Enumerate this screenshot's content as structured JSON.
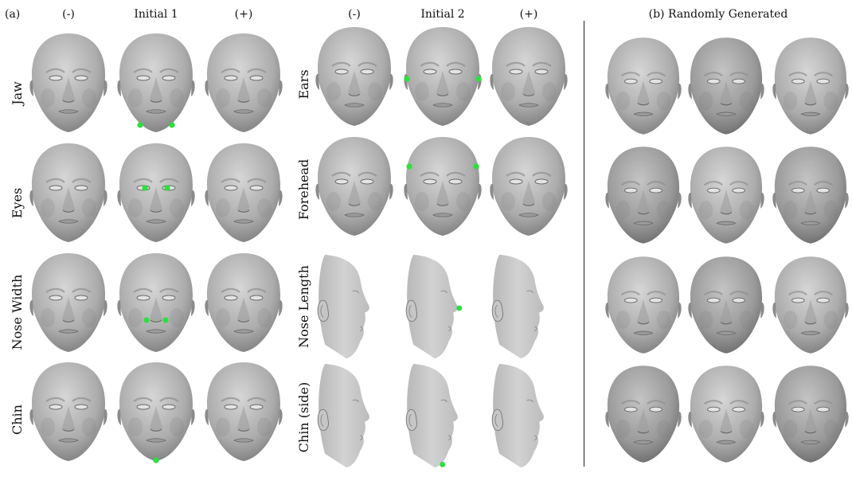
{
  "panel_a": {
    "tag": "(a)",
    "columns_group1": [
      "(-)",
      "Initial 1",
      "(+)"
    ],
    "columns_group2": [
      "(-)",
      "Initial 2",
      "(+)"
    ],
    "rows_group1": [
      "Jaw",
      "Eyes",
      "Nose Width",
      "Chin"
    ],
    "rows_group2": [
      "Ears",
      "Forehead",
      "Nose Length",
      "Chin (side)"
    ]
  },
  "panel_b": {
    "title": "(b) Randomly Generated"
  },
  "colors": {
    "landmark": "#27e33a",
    "face_light": "#d2d2d2",
    "face_dark": "#6e6e6e"
  }
}
